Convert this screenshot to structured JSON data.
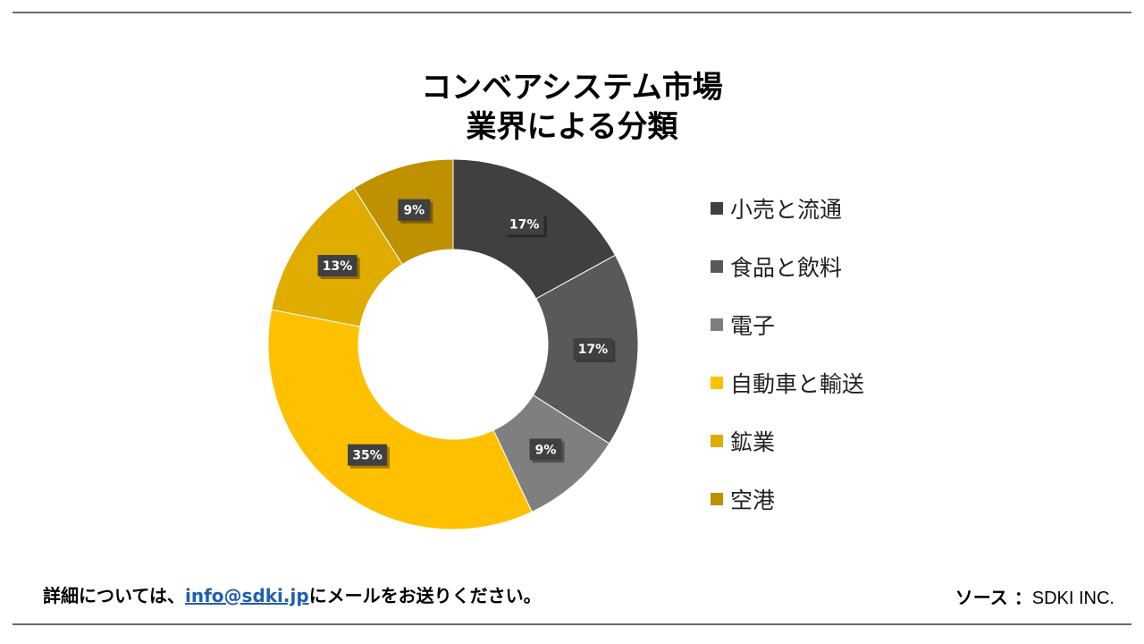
{
  "chart_data": {
    "type": "pie",
    "donut": true,
    "title_lines": [
      "コンベアシステム市場",
      "業界による分類"
    ],
    "categories": [
      "小売と流通",
      "食品と飲料",
      "電子",
      "自動車と輸送",
      "鉱業",
      "空港"
    ],
    "values": [
      17,
      17,
      9,
      35,
      13,
      9
    ],
    "data_labels": [
      "17%",
      "17%",
      "9%",
      "35%",
      "13%",
      "9%"
    ],
    "colors": [
      "#404040",
      "#595959",
      "#7f7f7f",
      "#ffc000",
      "#e0ac00",
      "#bf9000"
    ],
    "legend_position": "right"
  },
  "footer": {
    "contact_prefix": "詳細については、",
    "contact_email": "info@sdki.jp",
    "contact_suffix": "にメールをお送りください。",
    "source_label": "ソース ：",
    "source_value": "SDKI INC."
  }
}
